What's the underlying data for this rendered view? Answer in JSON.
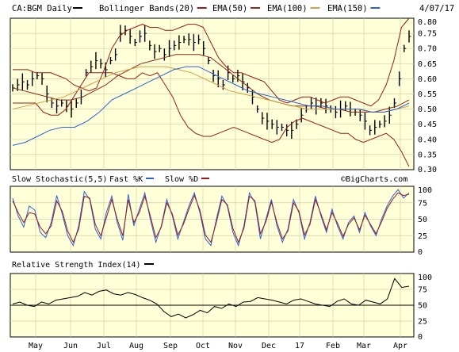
{
  "header": {
    "symbol": "CA:BGM Daily",
    "date": "4/07/17",
    "watermark": "©BigCharts.com"
  },
  "colors": {
    "background": "#ffffd8",
    "frame": "#000000",
    "price": "#000000",
    "bollinger": "#9b1b1b",
    "ema50": "#8b2a1a",
    "ema100": "#d4a045",
    "ema150": "#2a60d8",
    "ema_extra": "#c47070",
    "stoch_fast": "#2a60d8",
    "stoch_slow": "#9b1b1b",
    "rsi": "#000000"
  },
  "chart_data": [
    {
      "type": "line",
      "title": "CA:BGM Daily",
      "legend_position": "top",
      "grid": true,
      "ylim": [
        0.3,
        0.8
      ],
      "y_ticks": [
        "0.80",
        "0.75",
        "0.70",
        "0.65",
        "0.60",
        "0.55",
        "0.50",
        "0.45",
        "0.40",
        "0.35",
        "0.30"
      ],
      "x_tick_labels": [
        "May",
        "Jun",
        "Jul",
        "Aug",
        "Sep",
        "Oct",
        "Nov",
        "Dec",
        "17",
        "Feb",
        "Mar",
        "Apr"
      ],
      "legend": [
        {
          "label": "Bollinger Bands(20)",
          "color": "#9b1b1b"
        },
        {
          "label": "EMA(50)",
          "color": "#8b2a1a"
        },
        {
          "label": "EMA(100)",
          "color": "#d4a045"
        },
        {
          "label": "EMA(150)",
          "color": "#2a60d8"
        }
      ],
      "series": [
        {
          "name": "CA:BGM",
          "kind": "ohlc",
          "values": [
            0.57,
            0.58,
            0.59,
            0.58,
            0.6,
            0.61,
            0.6,
            0.55,
            0.52,
            0.51,
            0.52,
            0.51,
            0.5,
            0.52,
            0.54,
            0.62,
            0.64,
            0.66,
            0.65,
            0.63,
            0.66,
            0.68,
            0.75,
            0.76,
            0.74,
            0.72,
            0.74,
            0.75,
            0.71,
            0.69,
            0.7,
            0.68,
            0.7,
            0.71,
            0.72,
            0.73,
            0.73,
            0.72,
            0.73,
            0.7,
            0.66,
            0.61,
            0.6,
            0.58,
            0.62,
            0.6,
            0.61,
            0.59,
            0.57,
            0.54,
            0.5,
            0.47,
            0.46,
            0.45,
            0.44,
            0.44,
            0.43,
            0.43,
            0.45,
            0.48,
            0.5,
            0.52,
            0.51,
            0.52,
            0.51,
            0.5,
            0.49,
            0.5,
            0.51,
            0.5,
            0.49,
            0.48,
            0.46,
            0.43,
            0.44,
            0.45,
            0.46,
            0.48,
            0.52,
            0.6,
            0.7,
            0.74
          ]
        },
        {
          "name": "Bollinger Upper",
          "values": [
            0.63,
            0.63,
            0.63,
            0.62,
            0.62,
            0.62,
            0.61,
            0.6,
            0.58,
            0.57,
            0.56,
            0.57,
            0.63,
            0.7,
            0.74,
            0.76,
            0.77,
            0.78,
            0.77,
            0.77,
            0.76,
            0.76,
            0.77,
            0.78,
            0.78,
            0.77,
            0.72,
            0.67,
            0.64,
            0.62,
            0.62,
            0.61,
            0.6,
            0.59,
            0.56,
            0.53,
            0.52,
            0.53,
            0.54,
            0.54,
            0.53,
            0.52,
            0.53,
            0.54,
            0.54,
            0.53,
            0.52,
            0.51,
            0.53,
            0.58,
            0.66,
            0.77,
            0.8
          ]
        },
        {
          "name": "Bollinger Lower",
          "values": [
            0.52,
            0.52,
            0.52,
            0.52,
            0.49,
            0.48,
            0.48,
            0.5,
            0.54,
            0.58,
            0.62,
            0.62,
            0.62,
            0.62,
            0.61,
            0.6,
            0.6,
            0.62,
            0.61,
            0.62,
            0.58,
            0.54,
            0.48,
            0.44,
            0.42,
            0.41,
            0.41,
            0.42,
            0.43,
            0.44,
            0.43,
            0.42,
            0.41,
            0.4,
            0.39,
            0.4,
            0.44,
            0.46,
            0.47,
            0.46,
            0.45,
            0.44,
            0.43,
            0.42,
            0.42,
            0.4,
            0.39,
            0.4,
            0.41,
            0.42,
            0.4,
            0.36,
            0.31
          ]
        },
        {
          "name": "EMA(50)",
          "values": [
            0.57,
            0.56,
            0.55,
            0.54,
            0.53,
            0.53,
            0.54,
            0.56,
            0.58,
            0.61,
            0.63,
            0.65,
            0.66,
            0.67,
            0.68,
            0.68,
            0.68,
            0.67,
            0.64,
            0.61,
            0.58,
            0.55,
            0.53,
            0.52,
            0.51,
            0.51,
            0.51,
            0.5,
            0.5,
            0.49,
            0.49,
            0.49,
            0.5,
            0.51,
            0.53
          ]
        },
        {
          "name": "EMA(100)",
          "values": [
            0.5,
            0.51,
            0.52,
            0.53,
            0.54,
            0.56,
            0.58,
            0.6,
            0.62,
            0.63,
            0.64,
            0.64,
            0.64,
            0.63,
            0.62,
            0.6,
            0.58,
            0.56,
            0.55,
            0.54,
            0.53,
            0.52,
            0.51,
            0.5,
            0.5,
            0.5,
            0.5,
            0.5,
            0.49,
            0.49,
            0.5,
            0.51
          ]
        },
        {
          "name": "EMA(150)",
          "values": [
            0.38,
            0.39,
            0.41,
            0.43,
            0.44,
            0.44,
            0.46,
            0.49,
            0.53,
            0.55,
            0.57,
            0.59,
            0.61,
            0.63,
            0.64,
            0.64,
            0.62,
            0.6,
            0.58,
            0.56,
            0.55,
            0.54,
            0.53,
            0.52,
            0.51,
            0.51,
            0.5,
            0.5,
            0.5,
            0.49,
            0.49,
            0.5,
            0.52
          ]
        }
      ]
    },
    {
      "type": "line",
      "title": "Slow Stochastic(5,5)",
      "legend": [
        {
          "label": "Fast %K",
          "color": "#2a60d8"
        },
        {
          "label": "Slow %D",
          "color": "#9b1b1b"
        }
      ],
      "ylim": [
        0,
        100
      ],
      "y_ticks": [
        "100",
        "75",
        "50",
        "25",
        "0"
      ],
      "series": [
        {
          "name": "Fast %K",
          "values": [
            82,
            55,
            38,
            70,
            64,
            30,
            22,
            45,
            86,
            58,
            25,
            10,
            40,
            92,
            80,
            35,
            20,
            60,
            85,
            45,
            18,
            88,
            40,
            65,
            90,
            50,
            15,
            40,
            80,
            55,
            20,
            45,
            70,
            90,
            60,
            20,
            10,
            50,
            85,
            70,
            30,
            10,
            40,
            90,
            75,
            20,
            50,
            80,
            40,
            15,
            35,
            80,
            60,
            20,
            45,
            85,
            55,
            30,
            65,
            40,
            20,
            45,
            55,
            30,
            60,
            40,
            25,
            50,
            70,
            85,
            95,
            82,
            90
          ]
        },
        {
          "name": "Slow %D",
          "values": [
            78,
            60,
            45,
            60,
            58,
            38,
            28,
            40,
            78,
            62,
            32,
            15,
            35,
            85,
            82,
            42,
            25,
            52,
            80,
            50,
            25,
            80,
            45,
            60,
            85,
            55,
            22,
            38,
            75,
            58,
            26,
            42,
            65,
            86,
            64,
            26,
            15,
            45,
            80,
            72,
            36,
            15,
            36,
            85,
            78,
            28,
            46,
            76,
            45,
            20,
            32,
            75,
            62,
            26,
            42,
            80,
            58,
            34,
            60,
            44,
            24,
            42,
            52,
            34,
            56,
            42,
            28,
            46,
            66,
            80,
            90,
            86,
            88
          ]
        }
      ]
    },
    {
      "type": "line",
      "title": "Relative Strength Index(14)",
      "ylim": [
        0,
        100
      ],
      "y_ticks": [
        "100",
        "75",
        "50",
        "25",
        "0"
      ],
      "reference_line": 50,
      "series": [
        {
          "name": "RSI(14)",
          "values": [
            52,
            55,
            50,
            48,
            55,
            52,
            58,
            60,
            62,
            64,
            70,
            66,
            72,
            74,
            68,
            66,
            70,
            67,
            62,
            58,
            52,
            40,
            32,
            36,
            30,
            35,
            42,
            38,
            48,
            45,
            52,
            48,
            55,
            56,
            62,
            60,
            58,
            55,
            52,
            58,
            60,
            56,
            52,
            50,
            48,
            56,
            60,
            52,
            50,
            58,
            55,
            52,
            60,
            92,
            78,
            80
          ]
        }
      ]
    }
  ]
}
